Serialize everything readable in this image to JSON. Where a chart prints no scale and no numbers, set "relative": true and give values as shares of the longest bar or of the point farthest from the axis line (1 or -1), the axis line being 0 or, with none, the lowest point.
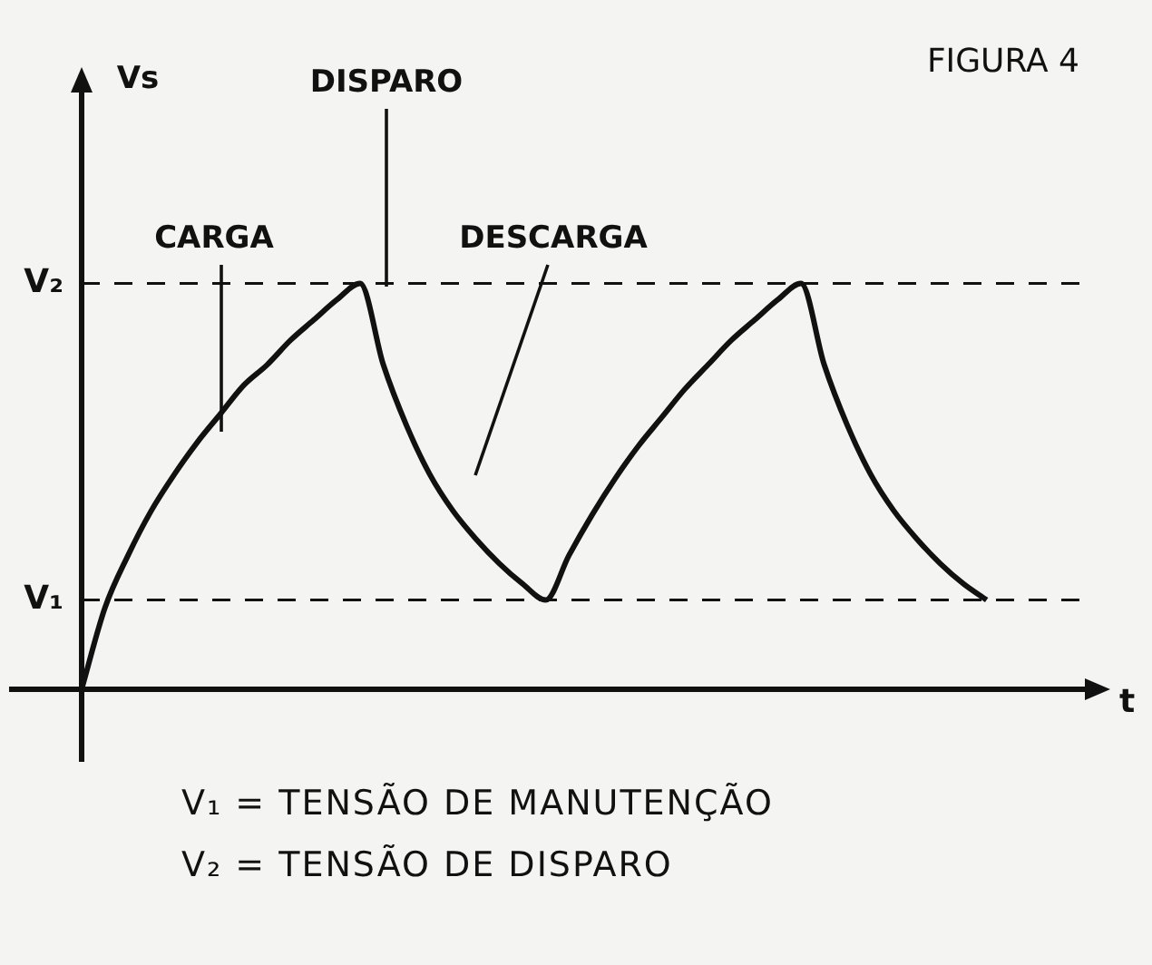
{
  "chart_data": {
    "type": "line",
    "title": "FIGURA 4",
    "xlabel": "t",
    "relative": true,
    "legend": false,
    "marker": "none",
    "categories": [
      null,
      null,
      null,
      null,
      null,
      null,
      null,
      null,
      null,
      null,
      null,
      null,
      null,
      null,
      null,
      null,
      null,
      null,
      null,
      null,
      null,
      null,
      null,
      null,
      null,
      null,
      null,
      null,
      null,
      null,
      null,
      null,
      null,
      null,
      null,
      null,
      null,
      null,
      null,
      null,
      null,
      null,
      null,
      null
    ],
    "series": [
      {
        "color": "#111111",
        "values": [
          0,
          0.2,
          0.33,
          0.44,
          0.53,
          0.61,
          0.68,
          0.75,
          0.8,
          0.86,
          0.91,
          0.96,
          1,
          0.8,
          0.65,
          0.53,
          0.44,
          0.37,
          0.31,
          0.26,
          0.22,
          0.33,
          0.43,
          0.52,
          0.6,
          0.67,
          0.74,
          0.8,
          0.86,
          0.91,
          0.96,
          1,
          0.8,
          0.65,
          0.53,
          0.44,
          0.37,
          0.31,
          0.26,
          0.22,
          null,
          null,
          null,
          null
        ]
      }
    ],
    "ref_lines": [
      {
        "axis": "y",
        "value": 1,
        "label": "V₂",
        "line_style": "dashed",
        "color": "#111111"
      },
      {
        "axis": "y",
        "value": 0.22,
        "label": "V₁",
        "line_style": "dashed",
        "color": "#111111"
      }
    ],
    "annotations": [
      "CARGA",
      "DISPARO",
      "DESCARGA",
      "Vs",
      "V₁  =  TENSÃO DE MANUTENÇÃO",
      "V₂  =  TENSÃO DE DISPARO"
    ]
  }
}
